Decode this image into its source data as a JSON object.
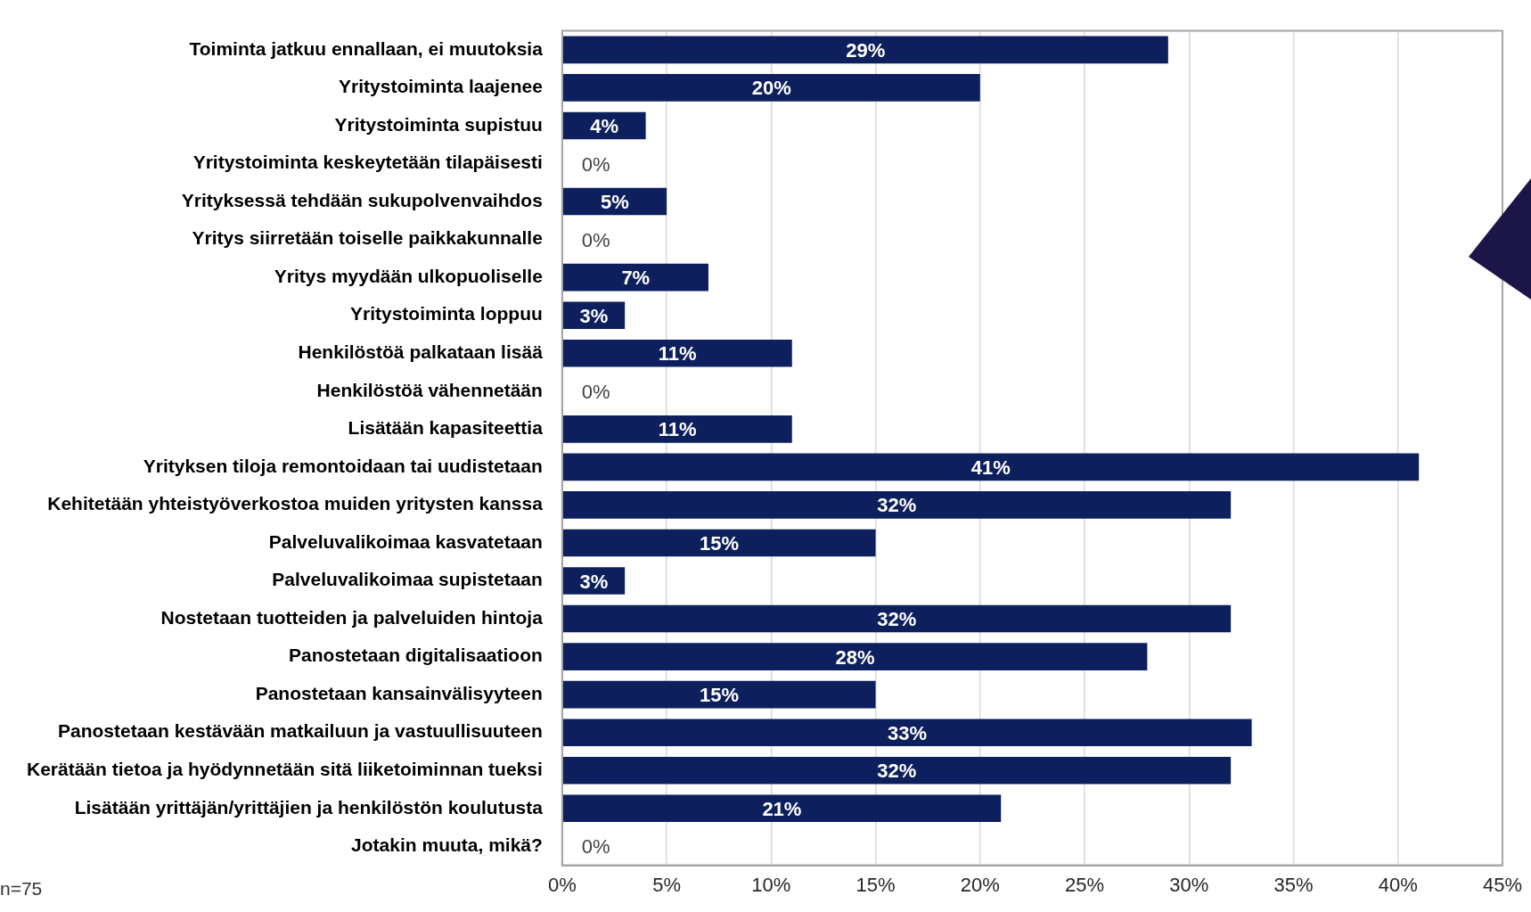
{
  "chart_data": {
    "type": "bar",
    "orientation": "horizontal",
    "categories": [
      "Toiminta jatkuu ennallaan, ei muutoksia",
      "Yritystoiminta laajenee",
      "Yritystoiminta supistuu",
      "Yritystoiminta keskeytetään tilapäisesti",
      "Yrityksessä tehdään sukupolvenvaihdos",
      "Yritys siirretään toiselle paikkakunnalle",
      "Yritys myydään ulkopuoliselle",
      "Yritystoiminta loppuu",
      "Henkilöstöä palkataan lisää",
      "Henkilöstöä vähennetään",
      "Lisätään kapasiteettia",
      "Yrityksen tiloja remontoidaan tai uudistetaan",
      "Kehitetään yhteistyöverkostoa muiden yritysten kanssa",
      "Palveluvalikoimaa kasvatetaan",
      "Palveluvalikoimaa supistetaan",
      "Nostetaan tuotteiden ja palveluiden hintoja",
      "Panostetaan digitalisaatioon",
      "Panostetaan kansainvälisyyteen",
      "Panostetaan kestävään matkailuun ja vastuullisuuteen",
      "Kerätään tietoa ja hyödynnetään sitä liiketoiminnan tueksi",
      "Lisätään yrittäjän/yrittäjien ja henkilöstön koulutusta",
      "Jotakin muuta, mikä?"
    ],
    "values": [
      29,
      20,
      4,
      0,
      5,
      0,
      7,
      3,
      11,
      0,
      11,
      41,
      32,
      15,
      3,
      32,
      28,
      15,
      33,
      32,
      21,
      0
    ],
    "value_labels": [
      "29%",
      "20%",
      "4%",
      "0%",
      "5%",
      "0%",
      "7%",
      "3%",
      "11%",
      "0%",
      "11%",
      "41%",
      "32%",
      "15%",
      "3%",
      "32%",
      "28%",
      "15%",
      "33%",
      "32%",
      "21%",
      "0%"
    ],
    "color": "#0d1f5c",
    "xlim": [
      0,
      45
    ],
    "xticks": [
      {
        "value": 0,
        "label": "0%"
      },
      {
        "value": 5,
        "label": "5%"
      },
      {
        "value": 10,
        "label": "10%"
      },
      {
        "value": 15,
        "label": "15%"
      },
      {
        "value": 20,
        "label": "20%"
      },
      {
        "value": 25,
        "label": "25%"
      },
      {
        "value": 30,
        "label": "30%"
      },
      {
        "value": 35,
        "label": "35%"
      },
      {
        "value": 40,
        "label": "40%"
      },
      {
        "value": 45,
        "label": "45%"
      }
    ],
    "grid": "x",
    "legend": false,
    "annotations": [
      "n=75"
    ]
  }
}
